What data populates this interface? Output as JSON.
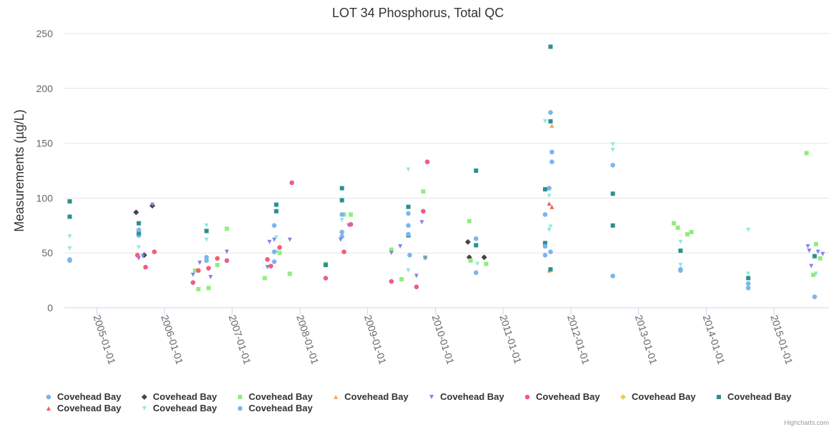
{
  "chart_data": {
    "type": "scatter",
    "title": "LOT 34 Phosphorus, Total QC",
    "ylabel": "Measurements (µg/L)",
    "xlabel": "",
    "ylim": [
      0,
      250
    ],
    "yticks": [
      0,
      50,
      100,
      150,
      200,
      250
    ],
    "xlim": [
      2004.52,
      2015.81
    ],
    "xticks": [
      {
        "value": 2005.0,
        "label": "2005-01-01"
      },
      {
        "value": 2006.0,
        "label": "2006-01-01"
      },
      {
        "value": 2007.0,
        "label": "2007-01-01"
      },
      {
        "value": 2008.0,
        "label": "2008-01-01"
      },
      {
        "value": 2009.0,
        "label": "2009-01-01"
      },
      {
        "value": 2010.0,
        "label": "2010-01-01"
      },
      {
        "value": 2011.0,
        "label": "2011-01-01"
      },
      {
        "value": 2012.0,
        "label": "2012-01-01"
      },
      {
        "value": 2013.0,
        "label": "2013-01-01"
      },
      {
        "value": 2014.0,
        "label": "2014-01-01"
      },
      {
        "value": 2015.0,
        "label": "2015-01-01"
      }
    ],
    "grid": true,
    "legend_position": "bottom",
    "series": [
      {
        "name": "Covehead Bay",
        "marker": "circle",
        "color": "#7cb5ec",
        "points": [
          [
            2004.6,
            44
          ],
          [
            2005.62,
            66
          ],
          [
            2006.62,
            46
          ],
          [
            2007.62,
            42
          ],
          [
            2008.62,
            65
          ],
          [
            2009.62,
            48
          ],
          [
            2010.6,
            32
          ],
          [
            2011.62,
            48
          ],
          [
            2011.68,
            109
          ],
          [
            2012.62,
            29
          ],
          [
            2013.62,
            34
          ],
          [
            2014.62,
            18
          ],
          [
            2015.6,
            10
          ]
        ]
      },
      {
        "name": "Covehead Bay",
        "marker": "diamond",
        "color": "#434348",
        "points": [
          [
            2005.58,
            87
          ],
          [
            2005.7,
            48
          ],
          [
            2005.82,
            93
          ],
          [
            2010.48,
            60
          ],
          [
            2010.5,
            46
          ],
          [
            2010.72,
            46
          ]
        ]
      },
      {
        "name": "Covehead Bay",
        "marker": "square",
        "color": "#90ed7d",
        "points": [
          [
            2006.45,
            34
          ],
          [
            2006.5,
            17
          ],
          [
            2006.65,
            18
          ],
          [
            2006.78,
            39
          ],
          [
            2006.92,
            72
          ],
          [
            2007.48,
            27
          ],
          [
            2007.7,
            50
          ],
          [
            2007.85,
            31
          ],
          [
            2008.38,
            40
          ],
          [
            2008.65,
            85
          ],
          [
            2008.75,
            85
          ],
          [
            2009.35,
            53
          ],
          [
            2009.5,
            26
          ],
          [
            2009.82,
            106
          ],
          [
            2009.85,
            46
          ],
          [
            2010.5,
            79
          ],
          [
            2010.52,
            43
          ],
          [
            2010.75,
            40
          ],
          [
            2013.52,
            77
          ],
          [
            2013.58,
            73
          ],
          [
            2013.72,
            67
          ],
          [
            2013.78,
            69
          ],
          [
            2015.48,
            141
          ],
          [
            2015.58,
            30
          ],
          [
            2015.62,
            58
          ],
          [
            2015.68,
            45
          ]
        ]
      },
      {
        "name": "Covehead Bay",
        "marker": "triangle",
        "color": "#f7a35c",
        "points": [
          [
            2011.68,
            34
          ],
          [
            2011.72,
            166
          ]
        ]
      },
      {
        "name": "Covehead Bay",
        "marker": "triangle-down",
        "color": "#8085e9",
        "points": [
          [
            2005.62,
            45
          ],
          [
            2005.68,
            47
          ],
          [
            2005.82,
            94
          ],
          [
            2006.42,
            30
          ],
          [
            2006.52,
            41
          ],
          [
            2006.68,
            28
          ],
          [
            2006.92,
            51
          ],
          [
            2007.52,
            37
          ],
          [
            2007.55,
            60
          ],
          [
            2007.62,
            62
          ],
          [
            2007.85,
            62
          ],
          [
            2008.6,
            62
          ],
          [
            2008.72,
            75
          ],
          [
            2009.35,
            50
          ],
          [
            2009.48,
            56
          ],
          [
            2009.72,
            29
          ],
          [
            2009.8,
            78
          ],
          [
            2009.85,
            45
          ],
          [
            2015.5,
            56
          ],
          [
            2015.52,
            52
          ],
          [
            2015.55,
            38
          ],
          [
            2015.65,
            51
          ],
          [
            2015.72,
            49
          ]
        ]
      },
      {
        "name": "Covehead Bay",
        "marker": "circle",
        "color": "#f15c80",
        "points": [
          [
            2005.6,
            48
          ],
          [
            2005.72,
            37
          ],
          [
            2005.85,
            51
          ],
          [
            2006.42,
            23
          ],
          [
            2006.5,
            34
          ],
          [
            2006.65,
            36
          ],
          [
            2006.78,
            45
          ],
          [
            2006.92,
            43
          ],
          [
            2007.52,
            44
          ],
          [
            2007.57,
            38
          ],
          [
            2007.7,
            55
          ],
          [
            2007.88,
            114
          ],
          [
            2008.38,
            27
          ],
          [
            2008.65,
            51
          ],
          [
            2008.75,
            76
          ],
          [
            2009.35,
            24
          ],
          [
            2009.72,
            19
          ],
          [
            2009.82,
            88
          ],
          [
            2009.88,
            133
          ]
        ]
      },
      {
        "name": "Covehead Bay",
        "marker": "diamond",
        "color": "#e4d354",
        "points": []
      },
      {
        "name": "Covehead Bay",
        "marker": "square",
        "color": "#2b908f",
        "points": [
          [
            2004.6,
            97
          ],
          [
            2004.6,
            83
          ],
          [
            2005.62,
            77
          ],
          [
            2005.62,
            68
          ],
          [
            2006.62,
            70
          ],
          [
            2007.65,
            94
          ],
          [
            2007.65,
            88
          ],
          [
            2008.38,
            39
          ],
          [
            2008.62,
            109
          ],
          [
            2008.62,
            98
          ],
          [
            2009.6,
            92
          ],
          [
            2009.6,
            66
          ],
          [
            2010.6,
            125
          ],
          [
            2010.6,
            57
          ],
          [
            2011.62,
            108
          ],
          [
            2011.62,
            59
          ],
          [
            2011.7,
            238
          ],
          [
            2011.7,
            170
          ],
          [
            2011.7,
            35
          ],
          [
            2012.62,
            104
          ],
          [
            2012.62,
            75
          ],
          [
            2013.62,
            52
          ],
          [
            2014.62,
            27
          ],
          [
            2015.6,
            47
          ]
        ]
      },
      {
        "name": "Covehead Bay",
        "marker": "triangle",
        "color": "#f45b5b",
        "points": [
          [
            2011.68,
            95
          ],
          [
            2011.72,
            92
          ]
        ]
      },
      {
        "name": "Covehead Bay",
        "marker": "triangle-down",
        "color": "#91e8e1",
        "points": [
          [
            2004.6,
            65
          ],
          [
            2004.6,
            54
          ],
          [
            2005.62,
            55
          ],
          [
            2006.62,
            75
          ],
          [
            2006.62,
            62
          ],
          [
            2007.65,
            64
          ],
          [
            2007.65,
            51
          ],
          [
            2008.62,
            80
          ],
          [
            2009.6,
            126
          ],
          [
            2009.6,
            34
          ],
          [
            2010.62,
            40
          ],
          [
            2011.62,
            170
          ],
          [
            2011.68,
            102
          ],
          [
            2011.7,
            74
          ],
          [
            2011.68,
            71
          ],
          [
            2012.62,
            149
          ],
          [
            2012.62,
            144
          ],
          [
            2013.62,
            60
          ],
          [
            2013.62,
            39
          ],
          [
            2014.62,
            71
          ],
          [
            2014.62,
            31
          ],
          [
            2015.62,
            31
          ]
        ]
      },
      {
        "name": "Covehead Bay",
        "marker": "circle",
        "color": "#7cb5ec",
        "points": [
          [
            2004.6,
            43
          ],
          [
            2005.62,
            71
          ],
          [
            2006.62,
            43
          ],
          [
            2007.62,
            75
          ],
          [
            2007.62,
            51
          ],
          [
            2008.62,
            85
          ],
          [
            2008.62,
            69
          ],
          [
            2009.6,
            86
          ],
          [
            2009.6,
            75
          ],
          [
            2009.6,
            67
          ],
          [
            2010.6,
            63
          ],
          [
            2011.62,
            85
          ],
          [
            2011.62,
            56
          ],
          [
            2011.7,
            178
          ],
          [
            2011.72,
            142
          ],
          [
            2011.72,
            133
          ],
          [
            2011.7,
            51
          ],
          [
            2012.62,
            130
          ],
          [
            2013.62,
            35
          ],
          [
            2014.62,
            22
          ]
        ]
      }
    ],
    "credits": "Highcharts.com"
  }
}
